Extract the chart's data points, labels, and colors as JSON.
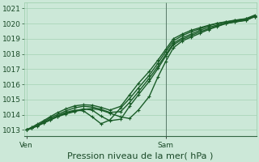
{
  "background_color": "#cce8d8",
  "grid_color": "#99ccaa",
  "line_color": "#1a5c28",
  "vline_color": "#5a7a6a",
  "ylabel_ticks": [
    1013,
    1014,
    1015,
    1016,
    1017,
    1018,
    1019,
    1020,
    1021
  ],
  "ylim": [
    1012.6,
    1021.4
  ],
  "xlabel": "Pression niveau de la mer( hPa )",
  "xlabel_fontsize": 8,
  "tick_fontsize": 6.5,
  "xtick_labels": [
    "Ven",
    "Sam"
  ],
  "xtick_positions": [
    0.0,
    0.635
  ],
  "xlim": [
    -0.01,
    1.05
  ],
  "vline_x": 0.635,
  "lines": [
    {
      "x": [
        0.0,
        0.025,
        0.05,
        0.08,
        0.11,
        0.14,
        0.18,
        0.22,
        0.26,
        0.3,
        0.34,
        0.38,
        0.43,
        0.47,
        0.51,
        0.56,
        0.6,
        0.635,
        0.67,
        0.71,
        0.75,
        0.79,
        0.83,
        0.87,
        0.91,
        0.95,
        1.0,
        1.04
      ],
      "y": [
        1013.0,
        1013.1,
        1013.25,
        1013.45,
        1013.65,
        1013.85,
        1014.05,
        1014.2,
        1014.35,
        1014.4,
        1014.3,
        1014.1,
        1013.85,
        1013.75,
        1014.3,
        1015.2,
        1016.5,
        1017.5,
        1018.4,
        1018.85,
        1019.1,
        1019.35,
        1019.6,
        1019.8,
        1020.0,
        1020.1,
        1020.2,
        1020.45
      ],
      "lw": 1.0
    },
    {
      "x": [
        0.0,
        0.025,
        0.05,
        0.08,
        0.11,
        0.14,
        0.18,
        0.22,
        0.26,
        0.3,
        0.34,
        0.38,
        0.43,
        0.47,
        0.51,
        0.56,
        0.6,
        0.635,
        0.67,
        0.71,
        0.75,
        0.79,
        0.83,
        0.87,
        0.91,
        0.95,
        1.0,
        1.04
      ],
      "y": [
        1013.0,
        1013.12,
        1013.28,
        1013.48,
        1013.68,
        1013.88,
        1014.1,
        1014.25,
        1014.38,
        1014.3,
        1013.9,
        1013.6,
        1013.7,
        1014.55,
        1015.3,
        1016.2,
        1017.05,
        1017.85,
        1018.6,
        1018.95,
        1019.2,
        1019.45,
        1019.65,
        1019.85,
        1020.0,
        1020.1,
        1020.22,
        1020.45
      ],
      "lw": 1.0
    },
    {
      "x": [
        0.0,
        0.025,
        0.05,
        0.08,
        0.11,
        0.14,
        0.18,
        0.22,
        0.26,
        0.3,
        0.34,
        0.38,
        0.43,
        0.47,
        0.51,
        0.56,
        0.6,
        0.635,
        0.67,
        0.71,
        0.75,
        0.79,
        0.83,
        0.87,
        0.91,
        0.95,
        1.0,
        1.04
      ],
      "y": [
        1013.0,
        1013.12,
        1013.28,
        1013.48,
        1013.7,
        1013.92,
        1014.15,
        1014.3,
        1014.25,
        1013.85,
        1013.4,
        1013.65,
        1014.45,
        1015.05,
        1015.75,
        1016.6,
        1017.4,
        1018.15,
        1018.85,
        1019.2,
        1019.45,
        1019.65,
        1019.85,
        1020.0,
        1020.1,
        1020.2,
        1020.3,
        1020.5
      ],
      "lw": 1.0
    },
    {
      "x": [
        0.0,
        0.025,
        0.05,
        0.08,
        0.11,
        0.14,
        0.18,
        0.22,
        0.26,
        0.3,
        0.34,
        0.38,
        0.43,
        0.47,
        0.51,
        0.56,
        0.6,
        0.635,
        0.67,
        0.71,
        0.75,
        0.79,
        0.83,
        0.87,
        0.91,
        0.95,
        1.0,
        1.04
      ],
      "y": [
        1013.0,
        1013.15,
        1013.3,
        1013.55,
        1013.8,
        1014.0,
        1014.25,
        1014.45,
        1014.55,
        1014.5,
        1014.35,
        1014.15,
        1014.2,
        1014.8,
        1015.5,
        1016.4,
        1017.2,
        1017.95,
        1018.7,
        1019.05,
        1019.3,
        1019.55,
        1019.75,
        1019.9,
        1020.05,
        1020.15,
        1020.25,
        1020.5
      ],
      "lw": 1.0
    },
    {
      "x": [
        0.0,
        0.025,
        0.05,
        0.08,
        0.11,
        0.14,
        0.18,
        0.22,
        0.26,
        0.3,
        0.34,
        0.38,
        0.43,
        0.47,
        0.51,
        0.56,
        0.6,
        0.635,
        0.67,
        0.71,
        0.75,
        0.79,
        0.83,
        0.87,
        0.91,
        0.95,
        1.0,
        1.04
      ],
      "y": [
        1013.0,
        1013.18,
        1013.38,
        1013.62,
        1013.88,
        1014.12,
        1014.38,
        1014.58,
        1014.65,
        1014.62,
        1014.48,
        1014.3,
        1014.55,
        1015.3,
        1016.05,
        1016.85,
        1017.6,
        1018.3,
        1019.0,
        1019.3,
        1019.55,
        1019.72,
        1019.88,
        1020.02,
        1020.12,
        1020.22,
        1020.32,
        1020.55
      ],
      "lw": 1.0
    }
  ]
}
